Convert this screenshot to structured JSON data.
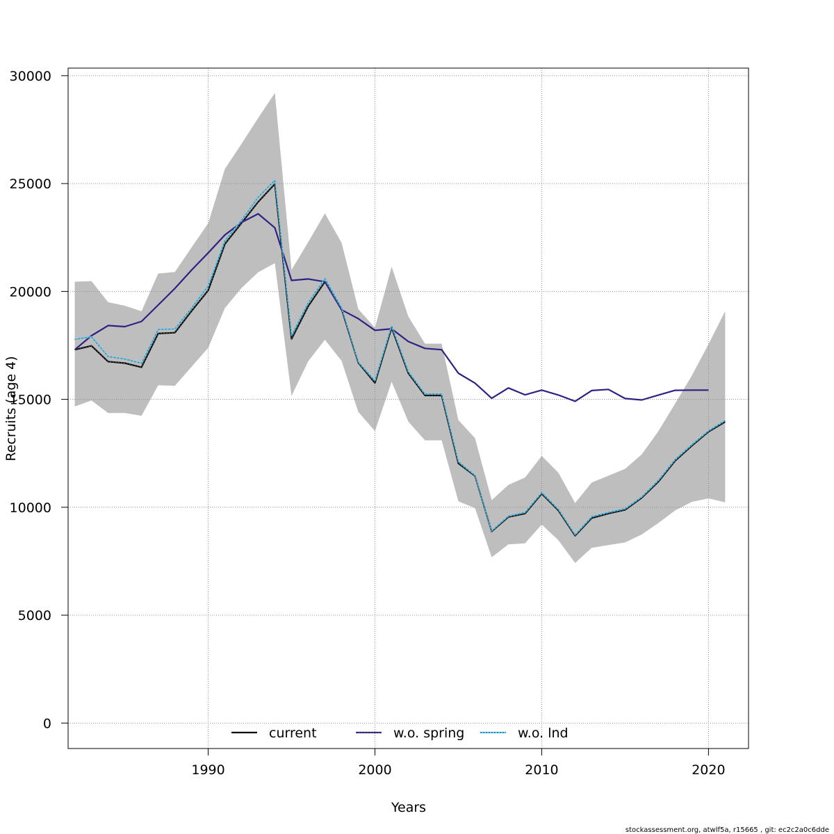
{
  "chart_data": {
    "type": "line",
    "xlabel": "Years",
    "ylabel": "Recruits (age 4)",
    "xlim": [
      1981.6,
      2022.4
    ],
    "ylim": [
      -1180,
      30350
    ],
    "xticks": [
      1990,
      2000,
      2010,
      2020
    ],
    "yticks": [
      0,
      5000,
      10000,
      15000,
      20000,
      25000,
      30000
    ],
    "grid": true,
    "legend_position": "bottom-center",
    "colors": {
      "band": "#bebebe",
      "current": "#000000",
      "spring": "#2d2183",
      "lnd": "#5ac8f0",
      "grid": "#8c8c8c"
    },
    "band": {
      "years": [
        1982,
        1983,
        1984,
        1985,
        1986,
        1987,
        1988,
        1989,
        1990,
        1991,
        1992,
        1993,
        1994,
        1995,
        1996,
        1997,
        1998,
        1999,
        2000,
        2001,
        2002,
        2003,
        2004,
        2005,
        2006,
        2007,
        2008,
        2009,
        2010,
        2011,
        2012,
        2013,
        2014,
        2015,
        2016,
        2017,
        2018,
        2019,
        2020,
        2021
      ],
      "upper": [
        20450,
        20480,
        19500,
        19340,
        19080,
        20830,
        20900,
        22040,
        23160,
        25680,
        26840,
        28040,
        29200,
        21000,
        22290,
        23620,
        22260,
        19180,
        18320,
        21150,
        18840,
        17580,
        17580,
        14040,
        13200,
        10330,
        11040,
        11380,
        12380,
        11600,
        10200,
        11150,
        11460,
        11780,
        12450,
        13530,
        14800,
        16100,
        17550,
        19090
      ],
      "lower": [
        14670,
        14950,
        14370,
        14370,
        14240,
        15650,
        15630,
        16510,
        17390,
        19230,
        20160,
        20890,
        21310,
        15160,
        16770,
        17760,
        16780,
        14420,
        13530,
        15820,
        13970,
        13100,
        13100,
        10280,
        9960,
        7680,
        8280,
        8330,
        9200,
        8470,
        7420,
        8120,
        8250,
        8370,
        8740,
        9270,
        9850,
        10250,
        10410,
        10230
      ]
    },
    "series": [
      {
        "name": "current",
        "years": [
          1982,
          1983,
          1984,
          1985,
          1986,
          1987,
          1988,
          1989,
          1990,
          1991,
          1992,
          1993,
          1994,
          1995,
          1996,
          1997,
          1998,
          1999,
          2000,
          2001,
          2002,
          2003,
          2004,
          2005,
          2006,
          2007,
          2008,
          2009,
          2010,
          2011,
          2012,
          2013,
          2014,
          2015,
          2016,
          2017,
          2018,
          2019,
          2020,
          2021
        ],
        "values": [
          17300,
          17480,
          16750,
          16680,
          16490,
          18050,
          18090,
          19090,
          20050,
          22200,
          23170,
          24150,
          24980,
          17800,
          19320,
          20450,
          19190,
          16700,
          15760,
          18320,
          16210,
          15180,
          15180,
          12030,
          11450,
          8880,
          9550,
          9710,
          10630,
          9850,
          8680,
          9500,
          9710,
          9880,
          10440,
          11190,
          12150,
          12850,
          13500,
          13960
        ]
      },
      {
        "name": "w.o. spring",
        "years": [
          1982,
          1983,
          1984,
          1985,
          1986,
          1987,
          1988,
          1989,
          1990,
          1991,
          1992,
          1993,
          1994,
          1995,
          1996,
          1997,
          1998,
          1999,
          2000,
          2001,
          2002,
          2003,
          2004,
          2005,
          2006,
          2007,
          2008,
          2009,
          2010,
          2011,
          2012,
          2013,
          2014,
          2015,
          2016,
          2017,
          2018,
          2019,
          2020
        ],
        "values": [
          17300,
          17950,
          18420,
          18370,
          18610,
          19370,
          20140,
          20990,
          21790,
          22620,
          23200,
          23600,
          22950,
          20510,
          20580,
          20450,
          19150,
          18740,
          18200,
          18270,
          17680,
          17360,
          17300,
          16210,
          15750,
          15050,
          15530,
          15210,
          15430,
          15200,
          14910,
          15410,
          15460,
          15040,
          14970,
          15200,
          15420,
          15430,
          15430
        ]
      },
      {
        "name": "w.o. lnd",
        "years": [
          1982,
          1983,
          1984,
          1985,
          1986,
          1987,
          1988,
          1989,
          1990,
          1991,
          1992,
          1993,
          1994,
          1995,
          1996,
          1997,
          1998,
          1999,
          2000,
          2001,
          2002,
          2003,
          2004,
          2005,
          2006,
          2007,
          2008,
          2009,
          2010,
          2011,
          2012,
          2013,
          2014,
          2015,
          2016,
          2017,
          2018,
          2019,
          2020,
          2021
        ],
        "values": [
          17780,
          17900,
          16980,
          16870,
          16670,
          18240,
          18260,
          19230,
          20250,
          22350,
          23300,
          24370,
          25150,
          17950,
          19480,
          20600,
          19240,
          16730,
          15860,
          18400,
          16290,
          15250,
          15250,
          12110,
          11470,
          8900,
          9590,
          9760,
          10680,
          9900,
          8720,
          9560,
          9760,
          9930,
          10480,
          11250,
          12210,
          12900,
          13540,
          14020
        ]
      }
    ]
  },
  "footer": "stockassessment.org, atwlf5a, r15665 , git: ec2c2a0c6dde"
}
